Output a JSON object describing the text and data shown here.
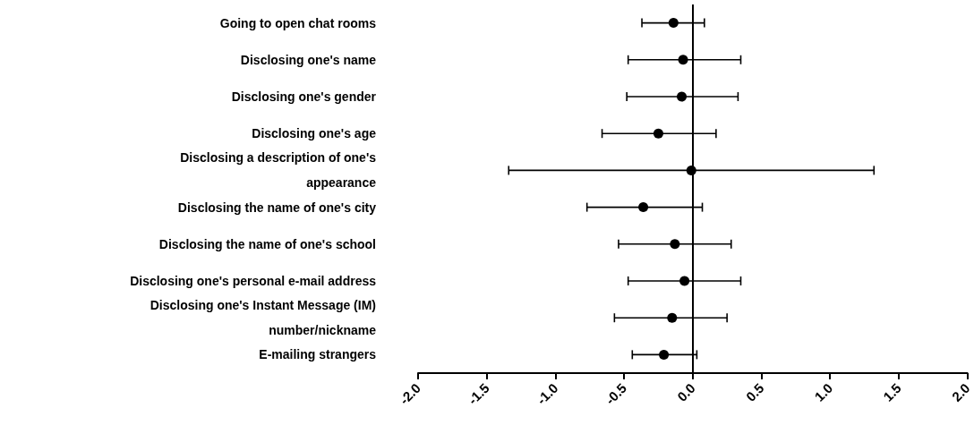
{
  "chart_data": {
    "type": "scatter",
    "orientation": "horizontal",
    "marker": "circle",
    "grid": false,
    "legend": false,
    "categories": [
      "Going to open chat rooms",
      "Disclosing one's name",
      "Disclosing one's gender",
      "Disclosing one's age",
      "Disclosing a description of one's\nappearance",
      "Disclosing the name of one's city",
      "Disclosing the name of one's school",
      "Disclosing one's personal e-mail address",
      "Disclosing one's Instant Message (IM)\nnumber/nickname",
      "E-mailing strangers"
    ],
    "values": [
      -0.14,
      -0.07,
      -0.08,
      -0.25,
      -0.01,
      -0.36,
      -0.13,
      -0.06,
      -0.15,
      -0.21
    ],
    "errors": [
      [
        -0.37,
        0.085
      ],
      [
        -0.47,
        0.35
      ],
      [
        -0.48,
        0.33
      ],
      [
        -0.66,
        0.17
      ],
      [
        -1.34,
        1.32
      ],
      [
        -0.77,
        0.07
      ],
      [
        -0.54,
        0.28
      ],
      [
        -0.47,
        0.35
      ],
      [
        -0.57,
        0.25
      ],
      [
        -0.44,
        0.03
      ]
    ],
    "color": "#000000",
    "xlim": [
      -2,
      2
    ],
    "xticks": [
      {
        "value": -2,
        "label": "-2.0"
      },
      {
        "value": -1.5,
        "label": "-1.5"
      },
      {
        "value": -1,
        "label": "-1.0"
      },
      {
        "value": -0.5,
        "label": "-0.5"
      },
      {
        "value": 0,
        "label": "0.0"
      },
      {
        "value": 0.5,
        "label": "0.5"
      },
      {
        "value": 1,
        "label": "1.0"
      },
      {
        "value": 1.5,
        "label": "1.5"
      },
      {
        "value": 2,
        "label": "2.0"
      }
    ],
    "ref_lines": [
      {
        "axis": "x",
        "value": 0,
        "label": null,
        "color": "#000000",
        "line_style": "solid"
      }
    ]
  }
}
